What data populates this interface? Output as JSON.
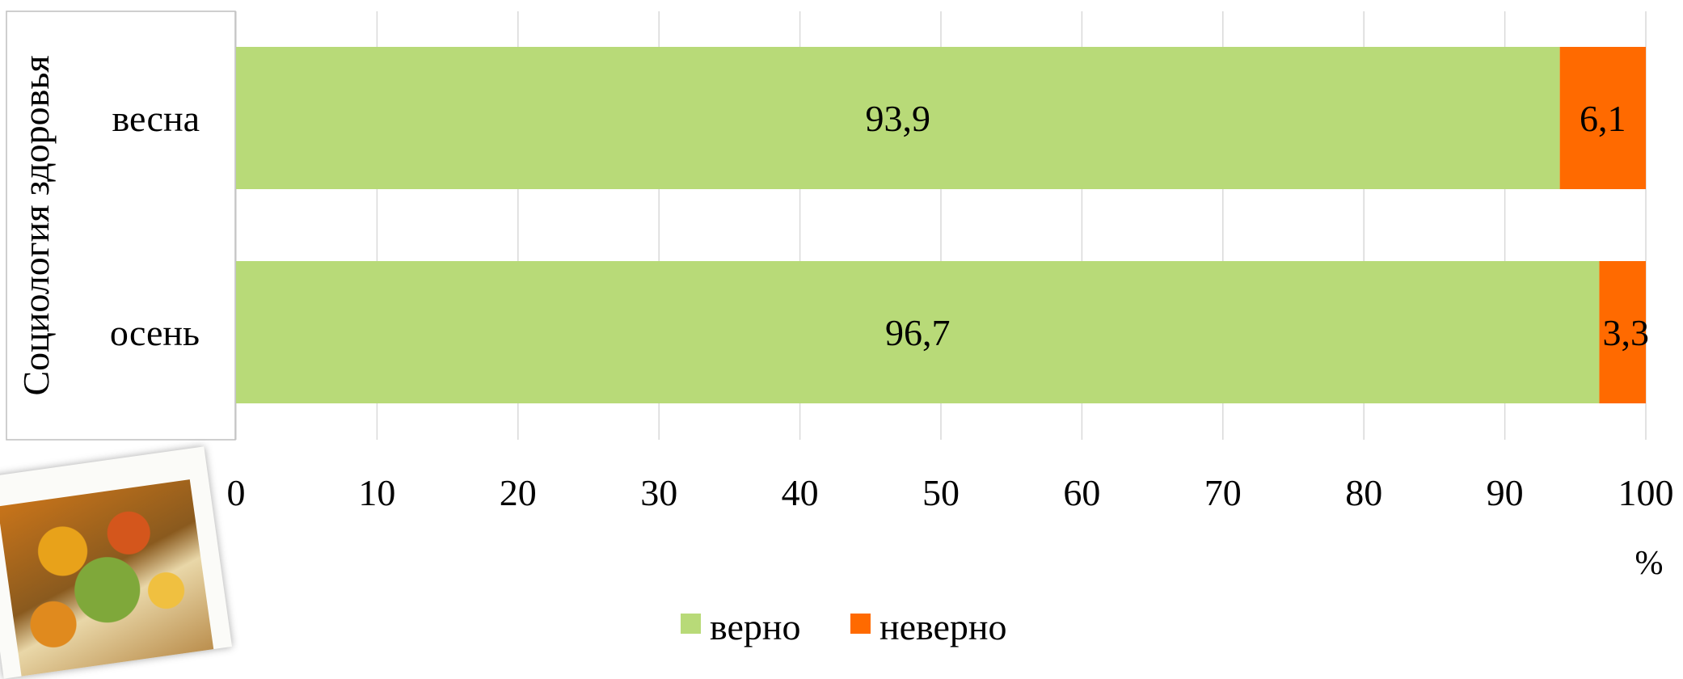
{
  "chart_data": {
    "type": "bar",
    "orientation": "horizontal",
    "stacked": true,
    "group_label": "Социология здоровья",
    "categories": [
      "весна",
      "осень"
    ],
    "series": [
      {
        "name": "верно",
        "values": [
          93.9,
          96.7
        ],
        "labels": [
          "93,9",
          "96,7"
        ],
        "color": "#b8da78"
      },
      {
        "name": "неверно",
        "values": [
          6.1,
          3.3
        ],
        "labels": [
          "6,1",
          "3,3"
        ],
        "color": "#ff6a00"
      }
    ],
    "xlim": [
      0,
      100
    ],
    "xticks": [
      "0",
      "10",
      "20",
      "30",
      "40",
      "50",
      "60",
      "70",
      "80",
      "90",
      "100"
    ],
    "xlabel": "%",
    "grid": true,
    "legend_position": "bottom"
  },
  "decoration": {
    "photo_icon": "autumn-leaves-book-photo"
  }
}
